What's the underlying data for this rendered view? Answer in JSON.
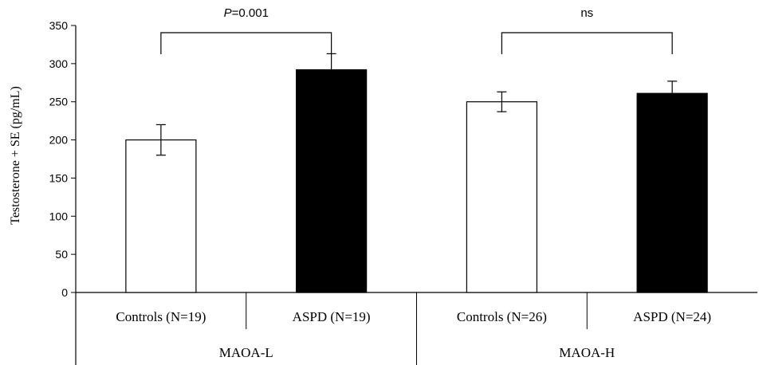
{
  "chart_data": {
    "type": "bar",
    "ylabel": "Testosterone + SE (pg/mL)",
    "ylim": [
      0,
      350
    ],
    "yticks": [
      0,
      50,
      100,
      150,
      200,
      250,
      300,
      350
    ],
    "grid": false,
    "groups": [
      {
        "name": "MAOA-L",
        "annotation": {
          "prefix": "P",
          "text": "=0.001"
        }
      },
      {
        "name": "MAOA-H",
        "annotation": {
          "prefix": "",
          "text": "ns"
        }
      }
    ],
    "bars": [
      {
        "group": 0,
        "label": "Controls (N=19)",
        "value": 200,
        "se": 20,
        "fill": "#ffffff"
      },
      {
        "group": 0,
        "label": "ASPD (N=19)",
        "value": 292,
        "se": 21,
        "fill": "#000000"
      },
      {
        "group": 1,
        "label": "Controls (N=26)",
        "value": 250,
        "se": 13,
        "fill": "#ffffff"
      },
      {
        "group": 1,
        "label": "ASPD (N=24)",
        "value": 261,
        "se": 16,
        "fill": "#000000"
      }
    ]
  }
}
